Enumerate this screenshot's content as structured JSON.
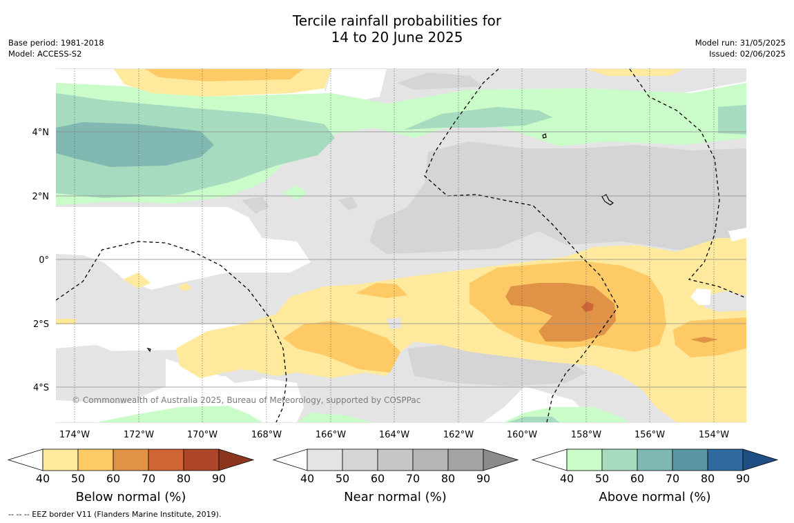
{
  "title": {
    "line1": "Tercile rainfall probabilities for",
    "line2": "14 to 20 June 2025"
  },
  "meta_left": {
    "base_period": "Base period: 1981-2018",
    "model": "Model: ACCESS-S2"
  },
  "meta_right": {
    "model_run": "Model run: 31/05/2025",
    "issued": "Issued: 02/06/2025"
  },
  "map": {
    "longitude_ticks": [
      "174°W",
      "172°W",
      "170°W",
      "168°W",
      "166°W",
      "164°W",
      "162°W",
      "160°W",
      "158°W",
      "156°W",
      "154°W"
    ],
    "latitude_ticks": [
      "4°N",
      "2°N",
      "0°",
      "2°S",
      "4°S"
    ],
    "copyright": "© Commonwealth of Australia 2025, Bureau of Meteorology, supported by COSPPac",
    "overlay": "EEZ border (dashed)"
  },
  "colorbars": [
    {
      "name": "below-normal",
      "title": "Below normal (%)",
      "ticks": [
        "40",
        "50",
        "60",
        "70",
        "80",
        "90"
      ],
      "colors": [
        "#fee99c",
        "#fdca65",
        "#e09247",
        "#cf6434",
        "#ad4528",
        "#8e3520"
      ]
    },
    {
      "name": "near-normal",
      "title": "Near normal (%)",
      "ticks": [
        "40",
        "50",
        "60",
        "70",
        "80",
        "90"
      ],
      "colors": [
        "#e4e4e4",
        "#d5d5d5",
        "#c6c6c6",
        "#b6b6b6",
        "#a4a4a4",
        "#8b8b8b"
      ]
    },
    {
      "name": "above-normal",
      "title": "Above normal (%)",
      "ticks": [
        "40",
        "50",
        "60",
        "70",
        "80",
        "90"
      ],
      "colors": [
        "#c9fcc9",
        "#a6dbbf",
        "#80b8b2",
        "#5a95a2",
        "#2f6a9f",
        "#1f4e84"
      ]
    }
  ],
  "footnote": "--  --  -- EEZ border V11 (Flanders Marine Institute, 2019)."
}
